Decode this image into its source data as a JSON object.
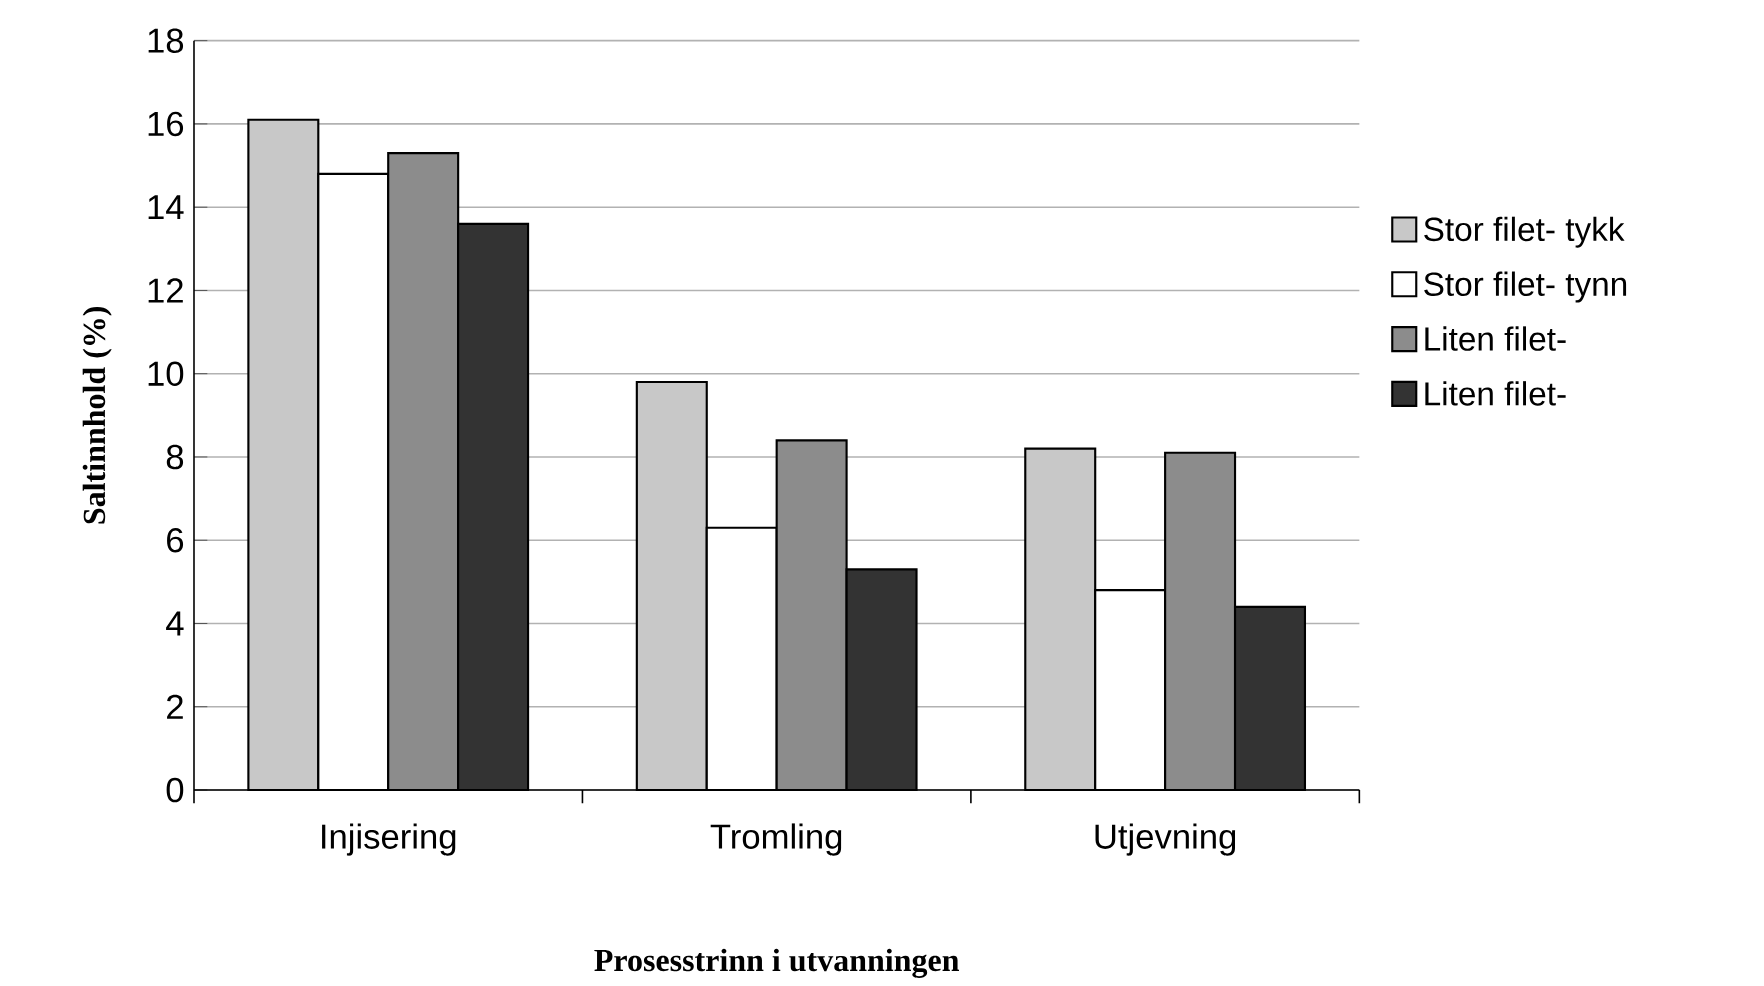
{
  "chart_data": {
    "type": "bar",
    "xlabel": "Prosesstrinn i utvanningen",
    "ylabel": "Saltinnhold (%)",
    "categories": [
      "Injisering",
      "Tromling",
      "Utjevning"
    ],
    "series": [
      {
        "name": "Stor filet- tykk",
        "color": "#c8c8c8",
        "values": [
          16.1,
          9.8,
          8.2
        ]
      },
      {
        "name": "Stor filet- tynn",
        "color": "#ffffff",
        "values": [
          14.8,
          6.3,
          4.8
        ]
      },
      {
        "name": "Liten filet-",
        "color": "#8c8c8c",
        "values": [
          15.3,
          8.4,
          8.1
        ]
      },
      {
        "name": "Liten filet-",
        "color": "#333333",
        "values": [
          13.6,
          5.3,
          4.4
        ]
      }
    ],
    "ylim": [
      0,
      18
    ],
    "yticks": [
      0,
      2,
      4,
      6,
      8,
      10,
      12,
      14,
      16,
      18
    ],
    "grid": "y",
    "legend": "right"
  }
}
